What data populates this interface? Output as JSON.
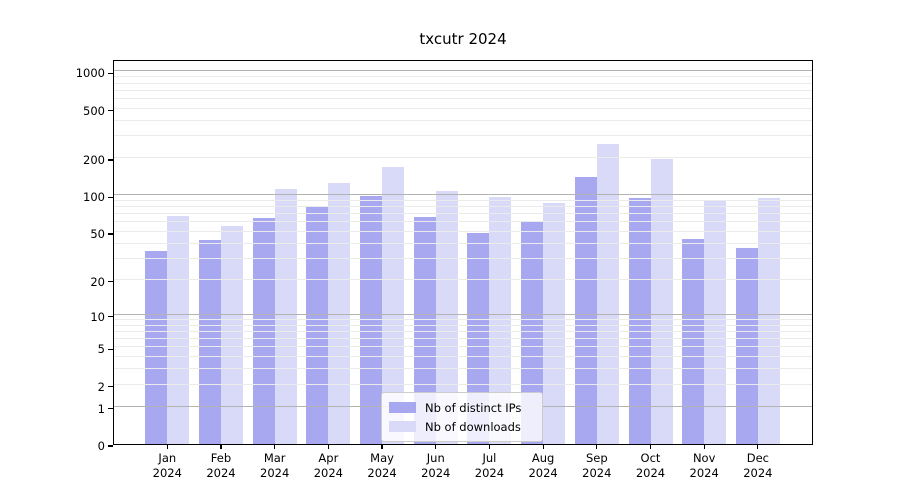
{
  "title": "txcutr 2024",
  "chart_data": {
    "type": "bar",
    "title": "txcutr 2024",
    "xlabel": "",
    "ylabel": "",
    "scale": "log1p",
    "grid": true,
    "legend_position": "bottom-center",
    "categories": [
      "Jan",
      "Feb",
      "Mar",
      "Apr",
      "May",
      "Jun",
      "Jul",
      "Aug",
      "Sep",
      "Oct",
      "Nov",
      "Dec"
    ],
    "year_label": "2024",
    "y_ticks": [
      0,
      1,
      2,
      5,
      10,
      20,
      50,
      100,
      200,
      500,
      1000
    ],
    "ylim": [
      0,
      1400
    ],
    "series": [
      {
        "name": "Nb of distinct IPs",
        "color": "#A8A8F0",
        "values": [
          35,
          43,
          65,
          80,
          98,
          66,
          49,
          61,
          140,
          94,
          44,
          37
        ]
      },
      {
        "name": "Nb of downloads",
        "color": "#D9D9F8",
        "values": [
          68,
          56,
          112,
          125,
          170,
          108,
          97,
          87,
          260,
          195,
          90,
          95
        ]
      }
    ],
    "colors": {
      "grid_major": "#b3b3b3",
      "grid_minor": "#ebebeb",
      "axis": "#000000"
    }
  }
}
